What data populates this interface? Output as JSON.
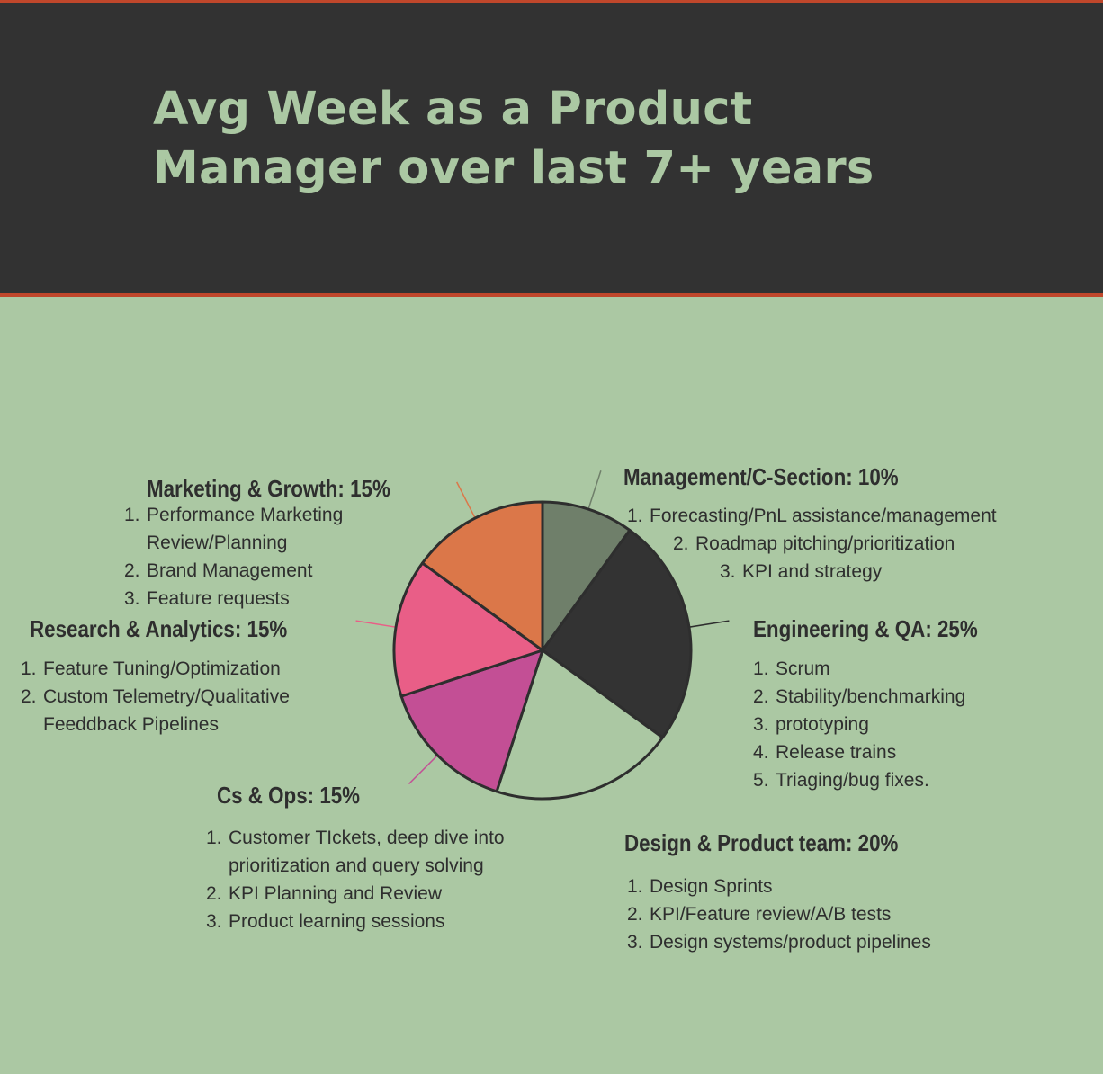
{
  "title": "Avg Week as a Product Manager over last 7+ years",
  "colors": {
    "header_bg": "#323232",
    "accent_line": "#c0472b",
    "page_bg": "#abc8a3",
    "title_text": "#abc8a3"
  },
  "chart_data": {
    "type": "pie",
    "start_angle_deg": 0,
    "direction": "clockwise",
    "slices": [
      {
        "label": "Management/C-Section",
        "value": 10,
        "value_label": "10%",
        "color": "#6f7f6a",
        "items": [
          "Forecasting/PnL assistance/management",
          "Roadmap pitching/prioritization",
          "KPI and strategy"
        ]
      },
      {
        "label": "Engineering & QA",
        "value": 25,
        "value_label": "25%",
        "color": "#333333",
        "items": [
          "Scrum",
          "Stability/benchmarking",
          "prototyping",
          "Release trains",
          "Triaging/bug fixes."
        ]
      },
      {
        "label": "Design & Product team",
        "value": 20,
        "value_label": "20%",
        "color": "#abc8a3",
        "items": [
          "Design Sprints",
          "KPI/Feature review/A/B tests",
          "Design systems/product pipelines"
        ]
      },
      {
        "label": "Cs & Ops",
        "value": 15,
        "value_label": "15%",
        "color": "#c34f95",
        "items": [
          "Customer TIckets, deep dive into prioritization and query solving",
          "KPI Planning and Review",
          "Product learning sessions"
        ]
      },
      {
        "label": "Research & Analytics",
        "value": 15,
        "value_label": "15%",
        "color": "#e95e87",
        "items": [
          "Feature Tuning/Optimization",
          "Custom Telemetry/Qualitative Feeddback Pipelines"
        ]
      },
      {
        "label": "Marketing & Growth",
        "value": 15,
        "value_label": "15%",
        "color": "#db7749",
        "items": [
          "Performance Marketing Review/Planning",
          "Brand Management",
          "Feature requests"
        ]
      }
    ]
  }
}
